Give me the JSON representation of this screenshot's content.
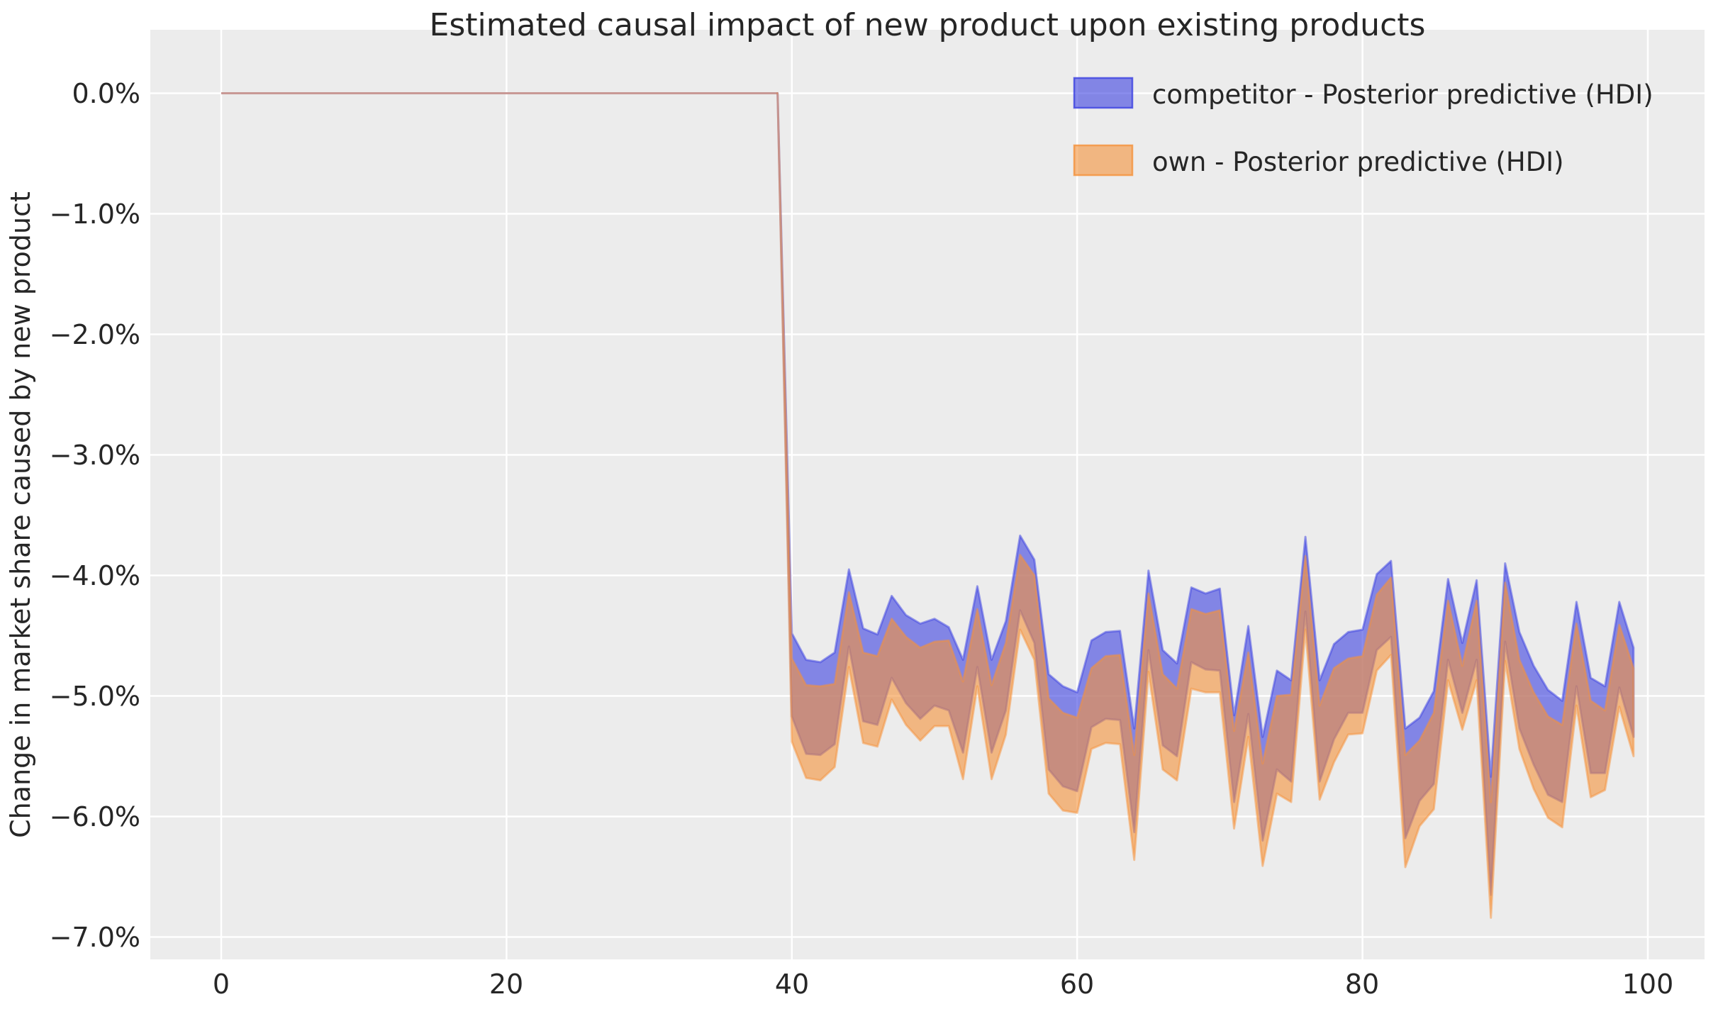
{
  "title": "Estimated causal impact of new product upon existing products",
  "ylabel": "Change in market share caused by new product",
  "x_ticks": [
    "0",
    "20",
    "40",
    "60",
    "80",
    "100"
  ],
  "y_ticks": [
    "0.0%",
    "−1.0%",
    "−2.0%",
    "−3.0%",
    "−4.0%",
    "−5.0%",
    "−6.0%",
    "−7.0%"
  ],
  "legend": [
    {
      "label": "competitor - Posterior predictive (HDI)",
      "color": "#3C41E1"
    },
    {
      "label": "own - Posterior predictive (HDI)",
      "color": "#F5923B"
    }
  ],
  "colors": {
    "axes_background": "#ececec",
    "grid": "#ffffff",
    "competitor_band": "#3C41E1",
    "own_band": "#F5923B",
    "pre_period_line_blend": "#C98384",
    "text": "#262626"
  },
  "chart_data": {
    "type": "area",
    "subtype": "hdi-bands",
    "title": "Estimated causal impact of new product upon existing products",
    "xlabel": "",
    "ylabel": "Change in market share caused by new product",
    "units": "percent",
    "grid": true,
    "legend_position": "upper right",
    "x_tick_values": [
      0,
      20,
      40,
      60,
      80,
      100
    ],
    "y_tick_values_pct": [
      0,
      -1,
      -2,
      -3,
      -4,
      -5,
      -6,
      -7
    ],
    "xlim": [
      -4.97,
      103.95
    ],
    "ylim": [
      0.53,
      -7.19
    ],
    "x_start": 0,
    "x_end": 99,
    "x_step": 1,
    "pre_period": {
      "x_start": 0,
      "x_end": 39,
      "value_pct": 0
    },
    "intervention_x": 40,
    "series": [
      {
        "name": "competitor - Posterior predictive (HDI)",
        "color": "#3C41E1",
        "post_x_start": 40,
        "hdi_upper_pct": [
          -4.48,
          -4.7,
          -4.72,
          -4.64,
          -3.95,
          -4.44,
          -4.49,
          -4.17,
          -4.33,
          -4.4,
          -4.36,
          -4.43,
          -4.7,
          -4.09,
          -4.7,
          -4.38,
          -3.67,
          -3.87,
          -4.82,
          -4.92,
          -4.97,
          -4.54,
          -4.47,
          -4.46,
          -5.27,
          -3.96,
          -4.62,
          -4.73,
          -4.1,
          -4.15,
          -4.11,
          -5.16,
          -4.42,
          -5.34,
          -4.79,
          -4.87,
          -3.68,
          -4.87,
          -4.57,
          -4.47,
          -4.45,
          -3.99,
          -3.88,
          -5.27,
          -5.18,
          -4.96,
          -4.03,
          -4.56,
          -4.04,
          -5.67,
          -3.9,
          -4.47,
          -4.75,
          -4.95,
          -5.04,
          -4.22,
          -4.85,
          -4.92,
          -4.22,
          -4.6
        ],
        "hdi_lower_pct": [
          -5.17,
          -5.48,
          -5.49,
          -5.4,
          -4.59,
          -5.21,
          -5.24,
          -4.85,
          -5.06,
          -5.19,
          -5.08,
          -5.12,
          -5.47,
          -4.76,
          -5.47,
          -5.12,
          -4.29,
          -4.56,
          -5.61,
          -5.75,
          -5.79,
          -5.26,
          -5.19,
          -5.2,
          -6.13,
          -4.62,
          -5.41,
          -5.5,
          -4.72,
          -4.78,
          -4.79,
          -5.88,
          -5.15,
          -6.2,
          -5.61,
          -5.71,
          -4.3,
          -5.71,
          -5.36,
          -5.14,
          -5.14,
          -4.62,
          -4.51,
          -6.18,
          -5.87,
          -5.73,
          -4.7,
          -5.14,
          -4.7,
          -6.65,
          -4.55,
          -5.27,
          -5.57,
          -5.82,
          -5.88,
          -4.92,
          -5.64,
          -5.64,
          -4.93,
          -5.34
        ]
      },
      {
        "name": "own - Posterior predictive (HDI)",
        "color": "#F5923B",
        "post_x_start": 40,
        "hdi_upper_pct": [
          -4.69,
          -4.91,
          -4.92,
          -4.9,
          -4.14,
          -4.64,
          -4.67,
          -4.36,
          -4.51,
          -4.6,
          -4.55,
          -4.54,
          -4.88,
          -4.28,
          -4.91,
          -4.56,
          -3.83,
          -4.0,
          -5.02,
          -5.14,
          -5.18,
          -4.77,
          -4.67,
          -4.66,
          -5.49,
          -4.15,
          -4.82,
          -4.94,
          -4.28,
          -4.32,
          -4.29,
          -5.29,
          -4.64,
          -5.56,
          -5.0,
          -4.99,
          -3.84,
          -5.08,
          -4.77,
          -4.69,
          -4.67,
          -4.16,
          -4.02,
          -5.49,
          -5.37,
          -5.14,
          -4.21,
          -4.75,
          -4.21,
          -5.88,
          -4.06,
          -4.7,
          -4.97,
          -5.17,
          -5.24,
          -4.4,
          -5.04,
          -5.12,
          -4.41,
          -4.77
        ],
        "hdi_lower_pct": [
          -5.38,
          -5.68,
          -5.7,
          -5.59,
          -4.76,
          -5.39,
          -5.42,
          -5.03,
          -5.24,
          -5.37,
          -5.25,
          -5.25,
          -5.69,
          -4.92,
          -5.69,
          -5.32,
          -4.45,
          -4.7,
          -5.81,
          -5.95,
          -5.97,
          -5.44,
          -5.39,
          -5.4,
          -6.36,
          -4.8,
          -5.61,
          -5.7,
          -4.94,
          -4.97,
          -4.97,
          -6.1,
          -5.34,
          -6.41,
          -5.81,
          -5.88,
          -4.45,
          -5.86,
          -5.55,
          -5.32,
          -5.31,
          -4.79,
          -4.66,
          -6.42,
          -6.08,
          -5.94,
          -4.87,
          -5.28,
          -4.87,
          -6.84,
          -4.71,
          -5.44,
          -5.77,
          -6.01,
          -6.09,
          -5.08,
          -5.84,
          -5.78,
          -5.09,
          -5.5
        ]
      }
    ]
  }
}
